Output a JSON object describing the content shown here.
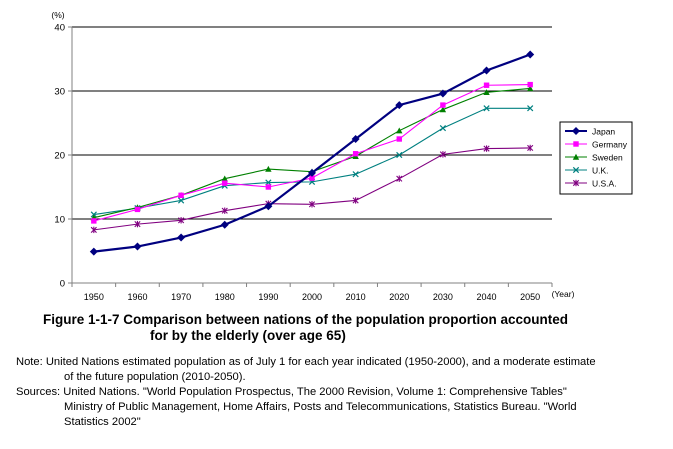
{
  "chart_data": {
    "type": "line",
    "y_unit": "(%)",
    "x_unit": "(Year)",
    "categories": [
      "1950",
      "1960",
      "1970",
      "1980",
      "1990",
      "2000",
      "2010",
      "2020",
      "2030",
      "2040",
      "2050"
    ],
    "ylim": [
      0,
      40
    ],
    "yticks": [
      0,
      10,
      20,
      30,
      40
    ],
    "grid": "horizontal",
    "legend_position": "right",
    "series": [
      {
        "name": "Japan",
        "color": "#000080",
        "marker": "diamond",
        "values": [
          4.9,
          5.7,
          7.1,
          9.1,
          12.0,
          17.2,
          22.5,
          27.8,
          29.6,
          33.2,
          35.7
        ]
      },
      {
        "name": "Germany",
        "color": "#ff00ff",
        "marker": "square",
        "values": [
          9.7,
          11.5,
          13.7,
          15.6,
          15.0,
          16.4,
          20.2,
          22.5,
          27.8,
          30.9,
          31.0
        ]
      },
      {
        "name": "Sweden",
        "color": "#008000",
        "marker": "triangle",
        "values": [
          10.2,
          11.8,
          13.7,
          16.3,
          17.8,
          17.4,
          19.8,
          23.8,
          27.1,
          29.8,
          30.4
        ]
      },
      {
        "name": "U.K.",
        "color": "#008080",
        "marker": "x",
        "values": [
          10.7,
          11.7,
          12.9,
          15.2,
          15.7,
          15.8,
          17.0,
          20.0,
          24.2,
          27.3,
          27.3
        ]
      },
      {
        "name": "U.S.A.",
        "color": "#800080",
        "marker": "star",
        "values": [
          8.3,
          9.2,
          9.8,
          11.3,
          12.4,
          12.3,
          12.9,
          16.3,
          20.1,
          21.0,
          21.1
        ]
      }
    ]
  },
  "caption": {
    "line1": "Figure 1-1-7  Comparison between nations of the population proportion accounted",
    "line2": "for by the elderly (over age 65)"
  },
  "notes": {
    "note_line1": "Note: United Nations estimated population as of July 1 for each year indicated (1950-2000), and a moderate estimate",
    "note_line2": "of the future population (2010-2050).",
    "sources_line1": "Sources: United Nations. \"World Population Prospectus, The 2000 Revision, Volume 1: Comprehensive Tables\"",
    "sources_line2": "Ministry of Public Management, Home Affairs, Posts and Telecommunications, Statistics Bureau. \"World",
    "sources_line3": "Statistics 2002\""
  }
}
